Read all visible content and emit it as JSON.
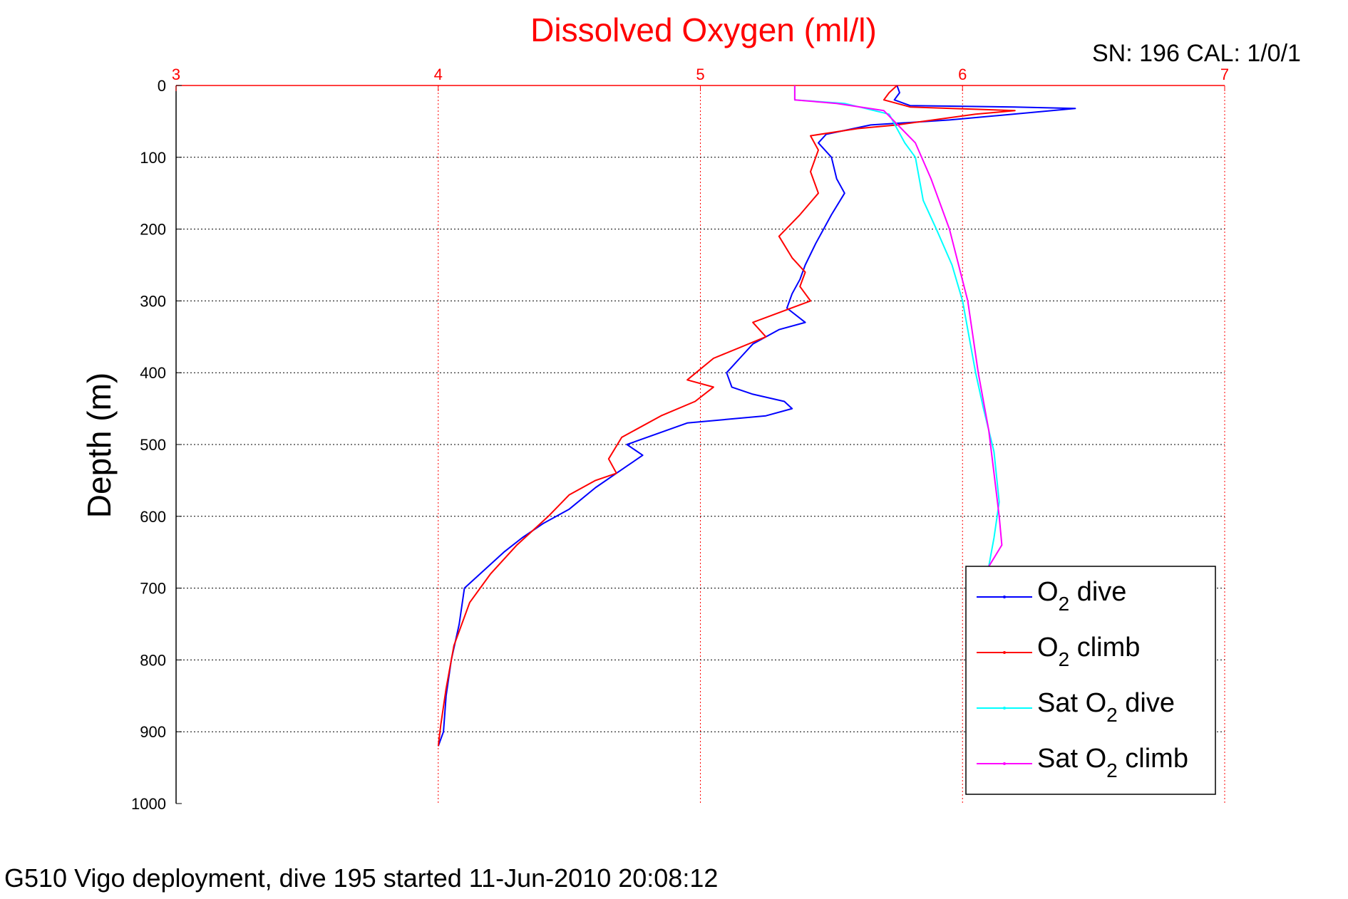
{
  "header": {
    "sn_text": "SN: 196  CAL: 1/0/1"
  },
  "footer": {
    "caption": "G510 Vigo deployment, dive 195 started 11-Jun-2010 20:08:12"
  },
  "chart_data": {
    "type": "line",
    "title": "Dissolved Oxygen (ml/l)",
    "xlabel": "",
    "ylabel": "Depth (m)",
    "xlim": [
      3,
      7
    ],
    "ylim": [
      0,
      1000
    ],
    "y_reversed": true,
    "x_axis_position": "top",
    "x_ticks": [
      3,
      4,
      5,
      6,
      7
    ],
    "y_ticks": [
      0,
      100,
      200,
      300,
      400,
      500,
      600,
      700,
      800,
      900,
      1000
    ],
    "grid": true,
    "legend_position": "bottom-right",
    "colors": {
      "axis_x": "#ff0000",
      "axis_y": "#000000"
    },
    "series": [
      {
        "name": "O2 dive",
        "legend_base": "O",
        "legend_sub": "2",
        "legend_suffix": " dive",
        "color": "#0000ff",
        "x": [
          5.75,
          5.76,
          5.74,
          5.8,
          6.2,
          6.43,
          5.95,
          5.65,
          5.48,
          5.45,
          5.5,
          5.52,
          5.55,
          5.5,
          5.44,
          5.4,
          5.38,
          5.35,
          5.33,
          5.4,
          5.3,
          5.2,
          5.15,
          5.1,
          5.12,
          5.2,
          5.32,
          5.35,
          5.25,
          4.95,
          4.72,
          4.78,
          4.72,
          4.6,
          4.5,
          4.4,
          4.32,
          4.25,
          4.1,
          4.08,
          4.05,
          4.03,
          4.02,
          4.0
        ],
        "y": [
          0,
          10,
          20,
          28,
          30,
          32,
          48,
          55,
          68,
          80,
          100,
          130,
          150,
          180,
          220,
          250,
          270,
          290,
          310,
          330,
          340,
          360,
          380,
          400,
          420,
          430,
          440,
          450,
          460,
          470,
          500,
          515,
          530,
          560,
          590,
          610,
          630,
          650,
          700,
          750,
          800,
          850,
          900,
          920
        ]
      },
      {
        "name": "O2 climb",
        "legend_base": "O",
        "legend_sub": "2",
        "legend_suffix": " climb",
        "color": "#ff0000",
        "x": [
          5.75,
          5.72,
          5.7,
          5.8,
          6.2,
          6.05,
          5.75,
          5.6,
          5.42,
          5.45,
          5.42,
          5.45,
          5.38,
          5.3,
          5.35,
          5.4,
          5.38,
          5.42,
          5.2,
          5.25,
          5.05,
          4.95,
          5.05,
          4.98,
          4.85,
          4.7,
          4.65,
          4.68,
          4.6,
          4.5,
          4.42,
          4.3,
          4.2,
          4.12,
          4.06,
          4.03,
          4.01,
          4.0
        ],
        "y": [
          0,
          10,
          20,
          30,
          35,
          40,
          55,
          60,
          70,
          90,
          120,
          150,
          180,
          210,
          240,
          260,
          280,
          300,
          330,
          350,
          380,
          410,
          420,
          440,
          460,
          490,
          520,
          540,
          550,
          570,
          600,
          640,
          680,
          720,
          780,
          840,
          890,
          920
        ]
      },
      {
        "name": "Sat O2 dive",
        "legend_base": "Sat O",
        "legend_sub": "2",
        "legend_suffix": " dive",
        "color": "#00ffff",
        "x": [
          5.36,
          5.36,
          5.55,
          5.72,
          5.78,
          5.82,
          5.85,
          5.9,
          5.96,
          6.0,
          6.05,
          6.08,
          6.12,
          6.14,
          6.12,
          6.1
        ],
        "y": [
          0,
          20,
          25,
          40,
          80,
          100,
          160,
          200,
          250,
          300,
          400,
          450,
          510,
          580,
          630,
          670
        ]
      },
      {
        "name": "Sat O2 climb",
        "legend_base": "Sat O",
        "legend_sub": "2",
        "legend_suffix": " climb",
        "color": "#ff00ff",
        "x": [
          5.36,
          5.36,
          5.52,
          5.7,
          5.82,
          5.88,
          5.95,
          6.02,
          6.06,
          6.1,
          6.12,
          6.14,
          6.15,
          6.1
        ],
        "y": [
          0,
          20,
          25,
          35,
          80,
          130,
          200,
          300,
          400,
          480,
          540,
          600,
          640,
          670
        ]
      }
    ]
  }
}
